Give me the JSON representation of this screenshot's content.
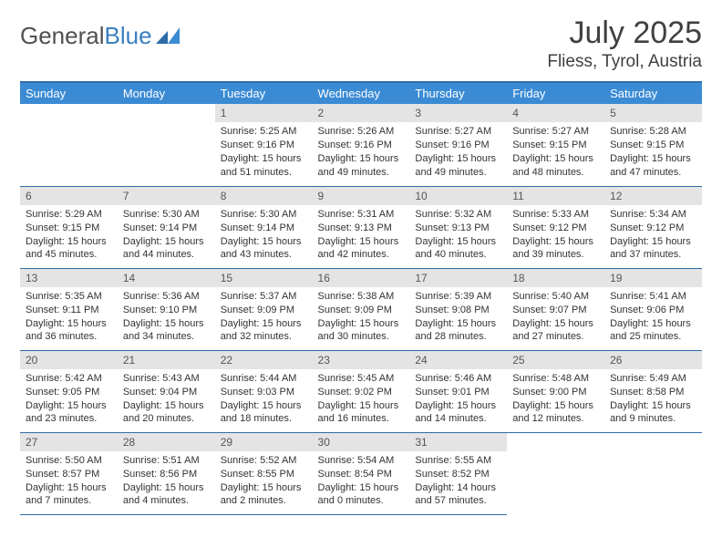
{
  "logo": {
    "text1": "General",
    "text2": "Blue"
  },
  "title": "July 2025",
  "location": "Fliess, Tyrol, Austria",
  "colors": {
    "header_bg": "#3b8bd4",
    "header_text": "#ffffff",
    "border": "#2e6ca8",
    "daynum_bg": "#e4e4e4",
    "daynum_text": "#555555",
    "body_text": "#333333",
    "logo_gray": "#505050",
    "logo_blue": "#3a7fbf"
  },
  "day_headers": [
    "Sunday",
    "Monday",
    "Tuesday",
    "Wednesday",
    "Thursday",
    "Friday",
    "Saturday"
  ],
  "weeks": [
    [
      null,
      null,
      {
        "n": "1",
        "sr": "5:25 AM",
        "ss": "9:16 PM",
        "dl": "15 hours and 51 minutes."
      },
      {
        "n": "2",
        "sr": "5:26 AM",
        "ss": "9:16 PM",
        "dl": "15 hours and 49 minutes."
      },
      {
        "n": "3",
        "sr": "5:27 AM",
        "ss": "9:16 PM",
        "dl": "15 hours and 49 minutes."
      },
      {
        "n": "4",
        "sr": "5:27 AM",
        "ss": "9:15 PM",
        "dl": "15 hours and 48 minutes."
      },
      {
        "n": "5",
        "sr": "5:28 AM",
        "ss": "9:15 PM",
        "dl": "15 hours and 47 minutes."
      }
    ],
    [
      {
        "n": "6",
        "sr": "5:29 AM",
        "ss": "9:15 PM",
        "dl": "15 hours and 45 minutes."
      },
      {
        "n": "7",
        "sr": "5:30 AM",
        "ss": "9:14 PM",
        "dl": "15 hours and 44 minutes."
      },
      {
        "n": "8",
        "sr": "5:30 AM",
        "ss": "9:14 PM",
        "dl": "15 hours and 43 minutes."
      },
      {
        "n": "9",
        "sr": "5:31 AM",
        "ss": "9:13 PM",
        "dl": "15 hours and 42 minutes."
      },
      {
        "n": "10",
        "sr": "5:32 AM",
        "ss": "9:13 PM",
        "dl": "15 hours and 40 minutes."
      },
      {
        "n": "11",
        "sr": "5:33 AM",
        "ss": "9:12 PM",
        "dl": "15 hours and 39 minutes."
      },
      {
        "n": "12",
        "sr": "5:34 AM",
        "ss": "9:12 PM",
        "dl": "15 hours and 37 minutes."
      }
    ],
    [
      {
        "n": "13",
        "sr": "5:35 AM",
        "ss": "9:11 PM",
        "dl": "15 hours and 36 minutes."
      },
      {
        "n": "14",
        "sr": "5:36 AM",
        "ss": "9:10 PM",
        "dl": "15 hours and 34 minutes."
      },
      {
        "n": "15",
        "sr": "5:37 AM",
        "ss": "9:09 PM",
        "dl": "15 hours and 32 minutes."
      },
      {
        "n": "16",
        "sr": "5:38 AM",
        "ss": "9:09 PM",
        "dl": "15 hours and 30 minutes."
      },
      {
        "n": "17",
        "sr": "5:39 AM",
        "ss": "9:08 PM",
        "dl": "15 hours and 28 minutes."
      },
      {
        "n": "18",
        "sr": "5:40 AM",
        "ss": "9:07 PM",
        "dl": "15 hours and 27 minutes."
      },
      {
        "n": "19",
        "sr": "5:41 AM",
        "ss": "9:06 PM",
        "dl": "15 hours and 25 minutes."
      }
    ],
    [
      {
        "n": "20",
        "sr": "5:42 AM",
        "ss": "9:05 PM",
        "dl": "15 hours and 23 minutes."
      },
      {
        "n": "21",
        "sr": "5:43 AM",
        "ss": "9:04 PM",
        "dl": "15 hours and 20 minutes."
      },
      {
        "n": "22",
        "sr": "5:44 AM",
        "ss": "9:03 PM",
        "dl": "15 hours and 18 minutes."
      },
      {
        "n": "23",
        "sr": "5:45 AM",
        "ss": "9:02 PM",
        "dl": "15 hours and 16 minutes."
      },
      {
        "n": "24",
        "sr": "5:46 AM",
        "ss": "9:01 PM",
        "dl": "15 hours and 14 minutes."
      },
      {
        "n": "25",
        "sr": "5:48 AM",
        "ss": "9:00 PM",
        "dl": "15 hours and 12 minutes."
      },
      {
        "n": "26",
        "sr": "5:49 AM",
        "ss": "8:58 PM",
        "dl": "15 hours and 9 minutes."
      }
    ],
    [
      {
        "n": "27",
        "sr": "5:50 AM",
        "ss": "8:57 PM",
        "dl": "15 hours and 7 minutes."
      },
      {
        "n": "28",
        "sr": "5:51 AM",
        "ss": "8:56 PM",
        "dl": "15 hours and 4 minutes."
      },
      {
        "n": "29",
        "sr": "5:52 AM",
        "ss": "8:55 PM",
        "dl": "15 hours and 2 minutes."
      },
      {
        "n": "30",
        "sr": "5:54 AM",
        "ss": "8:54 PM",
        "dl": "15 hours and 0 minutes."
      },
      {
        "n": "31",
        "sr": "5:55 AM",
        "ss": "8:52 PM",
        "dl": "14 hours and 57 minutes."
      },
      null,
      null
    ]
  ],
  "labels": {
    "sunrise": "Sunrise:",
    "sunset": "Sunset:",
    "daylight": "Daylight:"
  }
}
